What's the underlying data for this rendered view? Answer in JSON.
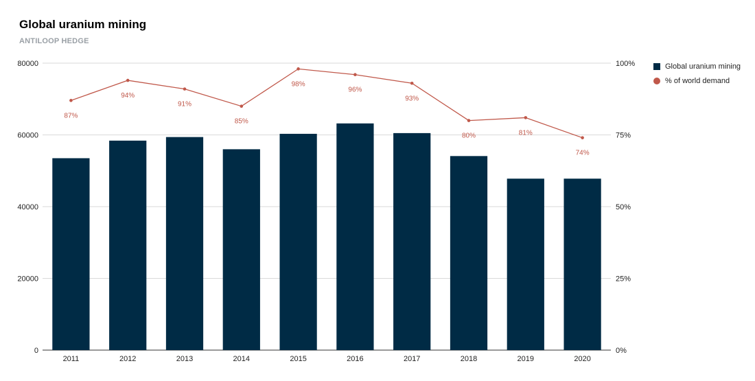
{
  "title": "Global uranium mining",
  "subtitle": "ANTILOOP HEDGE",
  "colors": {
    "bar": "#002b45",
    "line": "#c0584a",
    "grid": "#d9d9d9",
    "axis": "#333333"
  },
  "chart_data": {
    "type": "bar",
    "title": "Global uranium mining",
    "subtitle": "ANTILOOP HEDGE",
    "categories": [
      "2011",
      "2012",
      "2013",
      "2014",
      "2015",
      "2016",
      "2017",
      "2018",
      "2019",
      "2020"
    ],
    "series": [
      {
        "name": "Global uranium mining",
        "type": "bar",
        "axis": "left",
        "values": [
          53500,
          58400,
          59400,
          56000,
          60300,
          63200,
          60500,
          54100,
          47800,
          47800
        ]
      },
      {
        "name": "% of world demand",
        "type": "line",
        "axis": "right",
        "values": [
          87,
          94,
          91,
          85,
          98,
          96,
          93,
          80,
          81,
          74
        ],
        "labels": [
          "87%",
          "94%",
          "91%",
          "85%",
          "98%",
          "96%",
          "93%",
          "80%",
          "81%",
          "74%"
        ]
      }
    ],
    "y_left": {
      "ylim": [
        0,
        80000
      ],
      "ticks": [
        "0",
        "20000",
        "40000",
        "60000",
        "80000"
      ]
    },
    "y_right": {
      "ylim": [
        0,
        100
      ],
      "ticks": [
        "0%",
        "25%",
        "50%",
        "75%",
        "100%"
      ]
    },
    "grid": true,
    "legend_position": "right"
  }
}
